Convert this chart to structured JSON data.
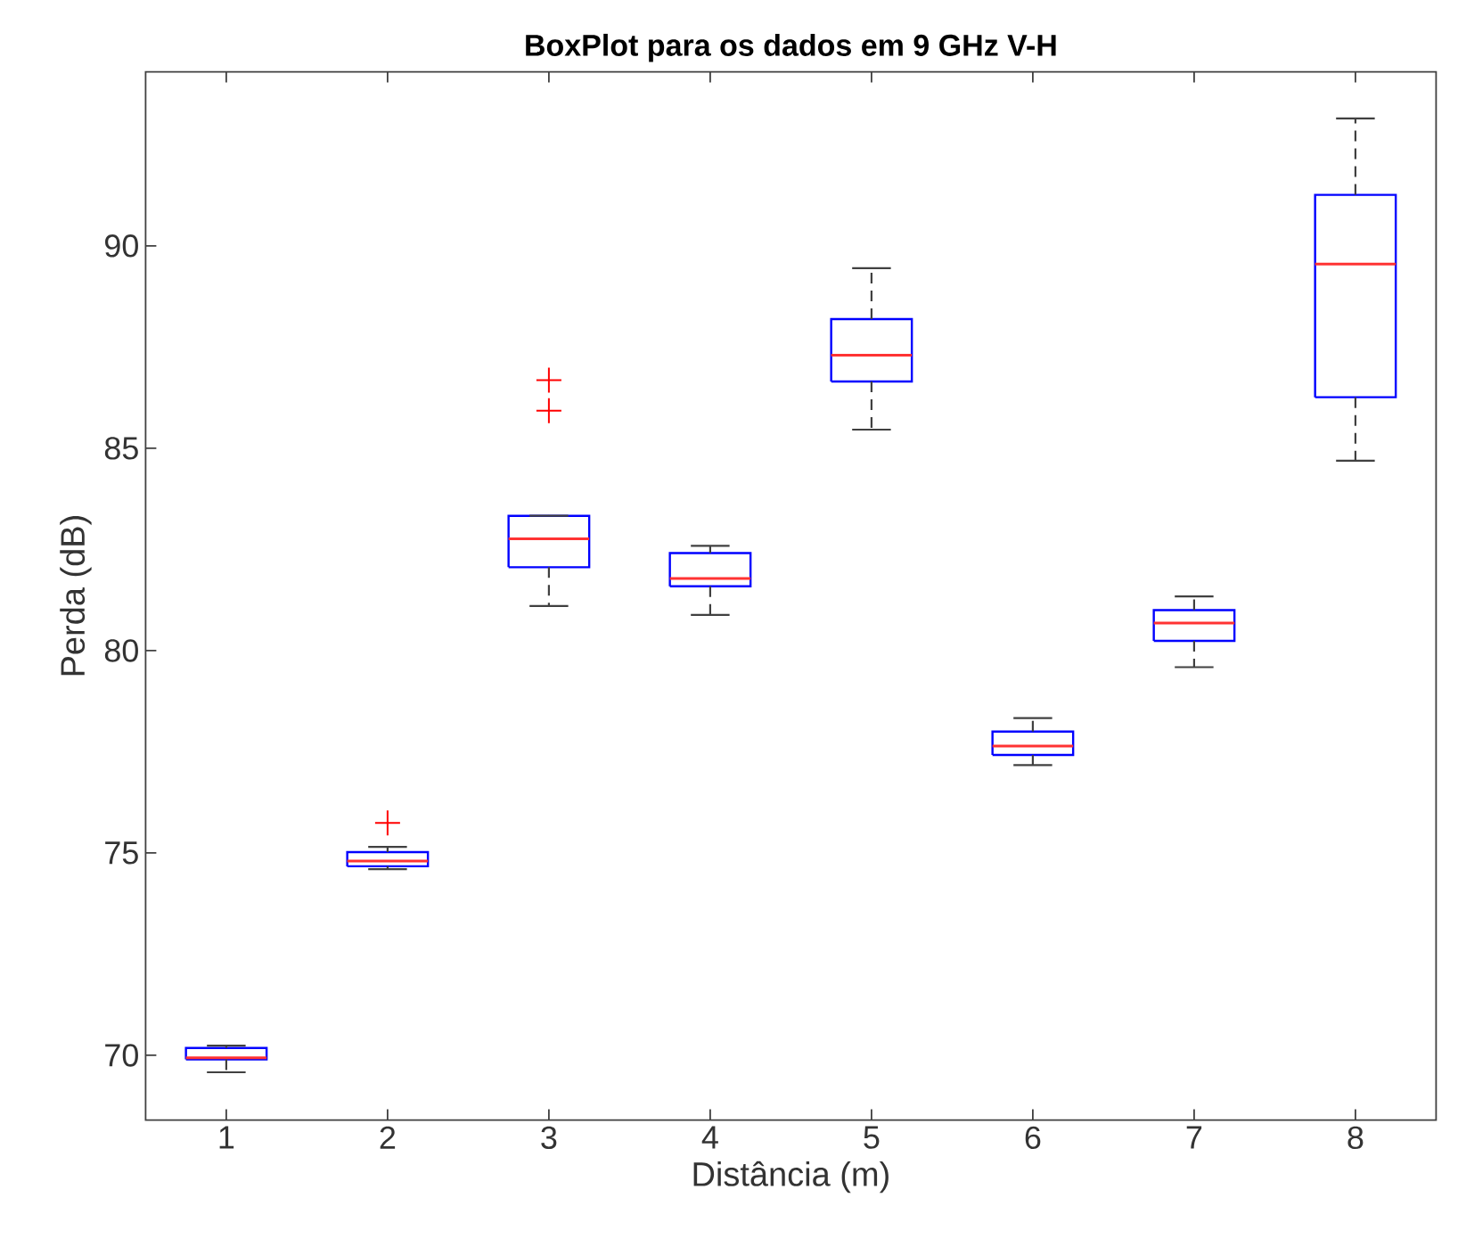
{
  "chart_data": {
    "type": "box",
    "title": "BoxPlot para os dados em 9 GHz V-H",
    "xlabel": "Distância (m)",
    "ylabel": "Perda (dB)",
    "categories": [
      "1",
      "2",
      "3",
      "4",
      "5",
      "6",
      "7",
      "8"
    ],
    "ylim": [
      68.4,
      94.3
    ],
    "yticks": [
      70,
      75,
      80,
      85,
      90
    ],
    "marker": "cross",
    "line_style": "dashed",
    "series": [
      {
        "color": "#0000ff",
        "boxes": [
          {
            "low": 69.58,
            "q1": 69.9,
            "median": 69.94,
            "q3": 70.18,
            "high": 70.24
          },
          {
            "low": 74.6,
            "q1": 74.67,
            "median": 74.8,
            "q3": 75.02,
            "high": 75.15,
            "outliers": [
              75.74
            ]
          },
          {
            "low": 81.1,
            "q1": 82.06,
            "median": 82.76,
            "q3": 83.33,
            "high": 83.33,
            "outliers": [
              85.93,
              86.68
            ]
          },
          {
            "low": 80.88,
            "q1": 81.59,
            "median": 81.78,
            "q3": 82.41,
            "high": 82.59
          },
          {
            "low": 85.46,
            "q1": 86.65,
            "median": 87.3,
            "q3": 88.19,
            "high": 89.45
          },
          {
            "low": 77.17,
            "q1": 77.42,
            "median": 77.64,
            "q3": 78.0,
            "high": 78.33
          },
          {
            "low": 79.59,
            "q1": 80.24,
            "median": 80.68,
            "q3": 81.0,
            "high": 81.34
          },
          {
            "low": 84.69,
            "q1": 86.26,
            "median": 89.55,
            "q3": 91.26,
            "high": 93.15
          }
        ]
      }
    ]
  }
}
